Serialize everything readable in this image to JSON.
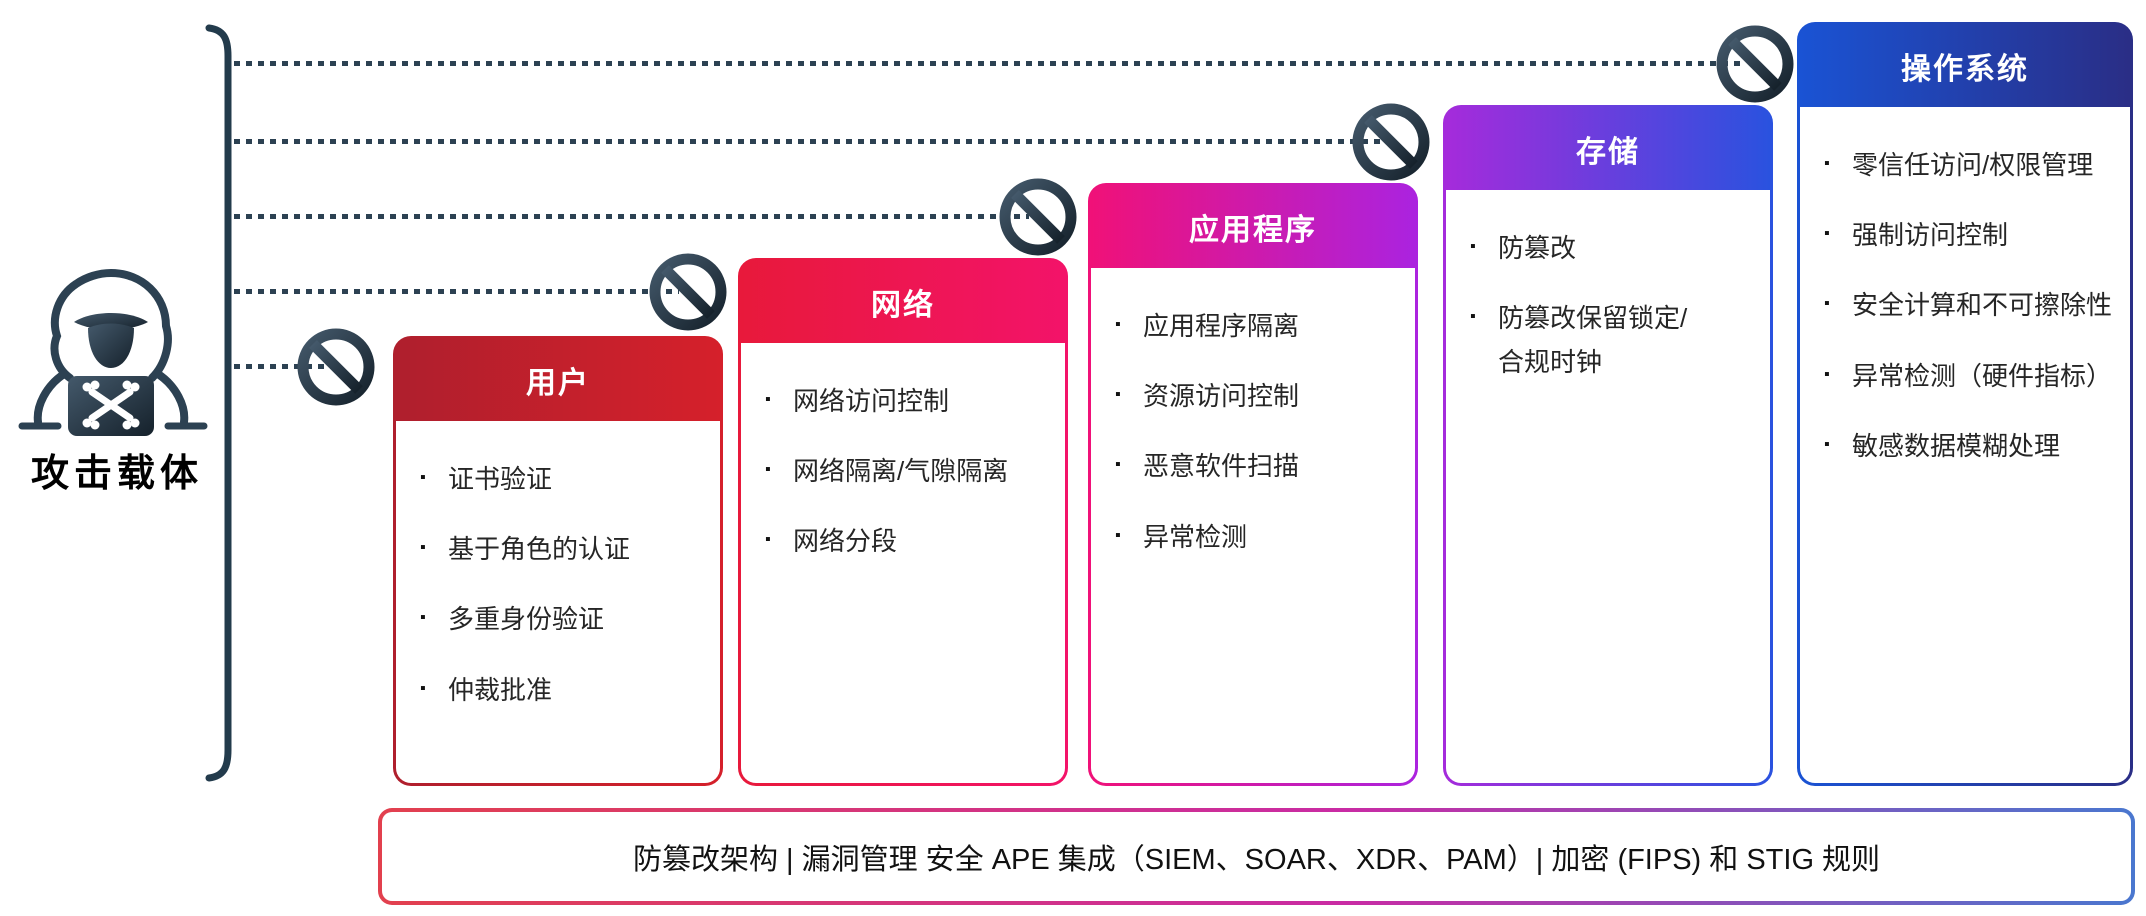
{
  "diagram": {
    "attack_vector_label": "攻击载体",
    "icons": {
      "attacker": "hooded-attacker-with-laptop-crossbones",
      "blocked": "no-entry-sign",
      "path": "dotted-attack-line",
      "bracket": "attack-vector-bracket"
    },
    "layers": [
      {
        "title": "用户",
        "items": [
          "证书验证",
          "基于角色的认证",
          "多重身份验证",
          "仲裁批准"
        ],
        "header_from": "#AF1F2D",
        "header_to": "#D5202B"
      },
      {
        "title": "网络",
        "items": [
          "网络访问控制",
          "网络隔离/气隙隔离",
          "网络分段"
        ],
        "header_from": "#E8193B",
        "header_to": "#F31369"
      },
      {
        "title": "应用程序",
        "items": [
          "应用程序隔离",
          "资源访问控制",
          "恶意软件扫描",
          "异常检测"
        ],
        "header_from": "#F01178",
        "header_to": "#AB23DF"
      },
      {
        "title": "存储",
        "items": [
          "防篡改",
          "防篡改保留锁定/合规时钟"
        ],
        "header_from": "#A52BDB",
        "header_to": "#2A52DF"
      },
      {
        "title": "操作系统",
        "items": [
          "零信任访问/权限管理",
          "强制访问控制",
          "安全计算和不可擦除性",
          "异常检测（硬件指标）",
          "敏感数据模糊处理"
        ],
        "header_from": "#1A53D4",
        "header_to": "#2A2E86"
      }
    ],
    "footer_text": "防篡改架构 | 漏洞管理 安全 APE 集成（SIEM、SOAR、XDR、PAM）| 加密 (FIPS) 和 STIG 规则",
    "colors": {
      "ink": "#2C4152",
      "text": "#262626",
      "footer_border_from": "#E2404E",
      "footer_border_mid": "#C92BA4",
      "footer_border_to": "#4A77CF"
    }
  }
}
